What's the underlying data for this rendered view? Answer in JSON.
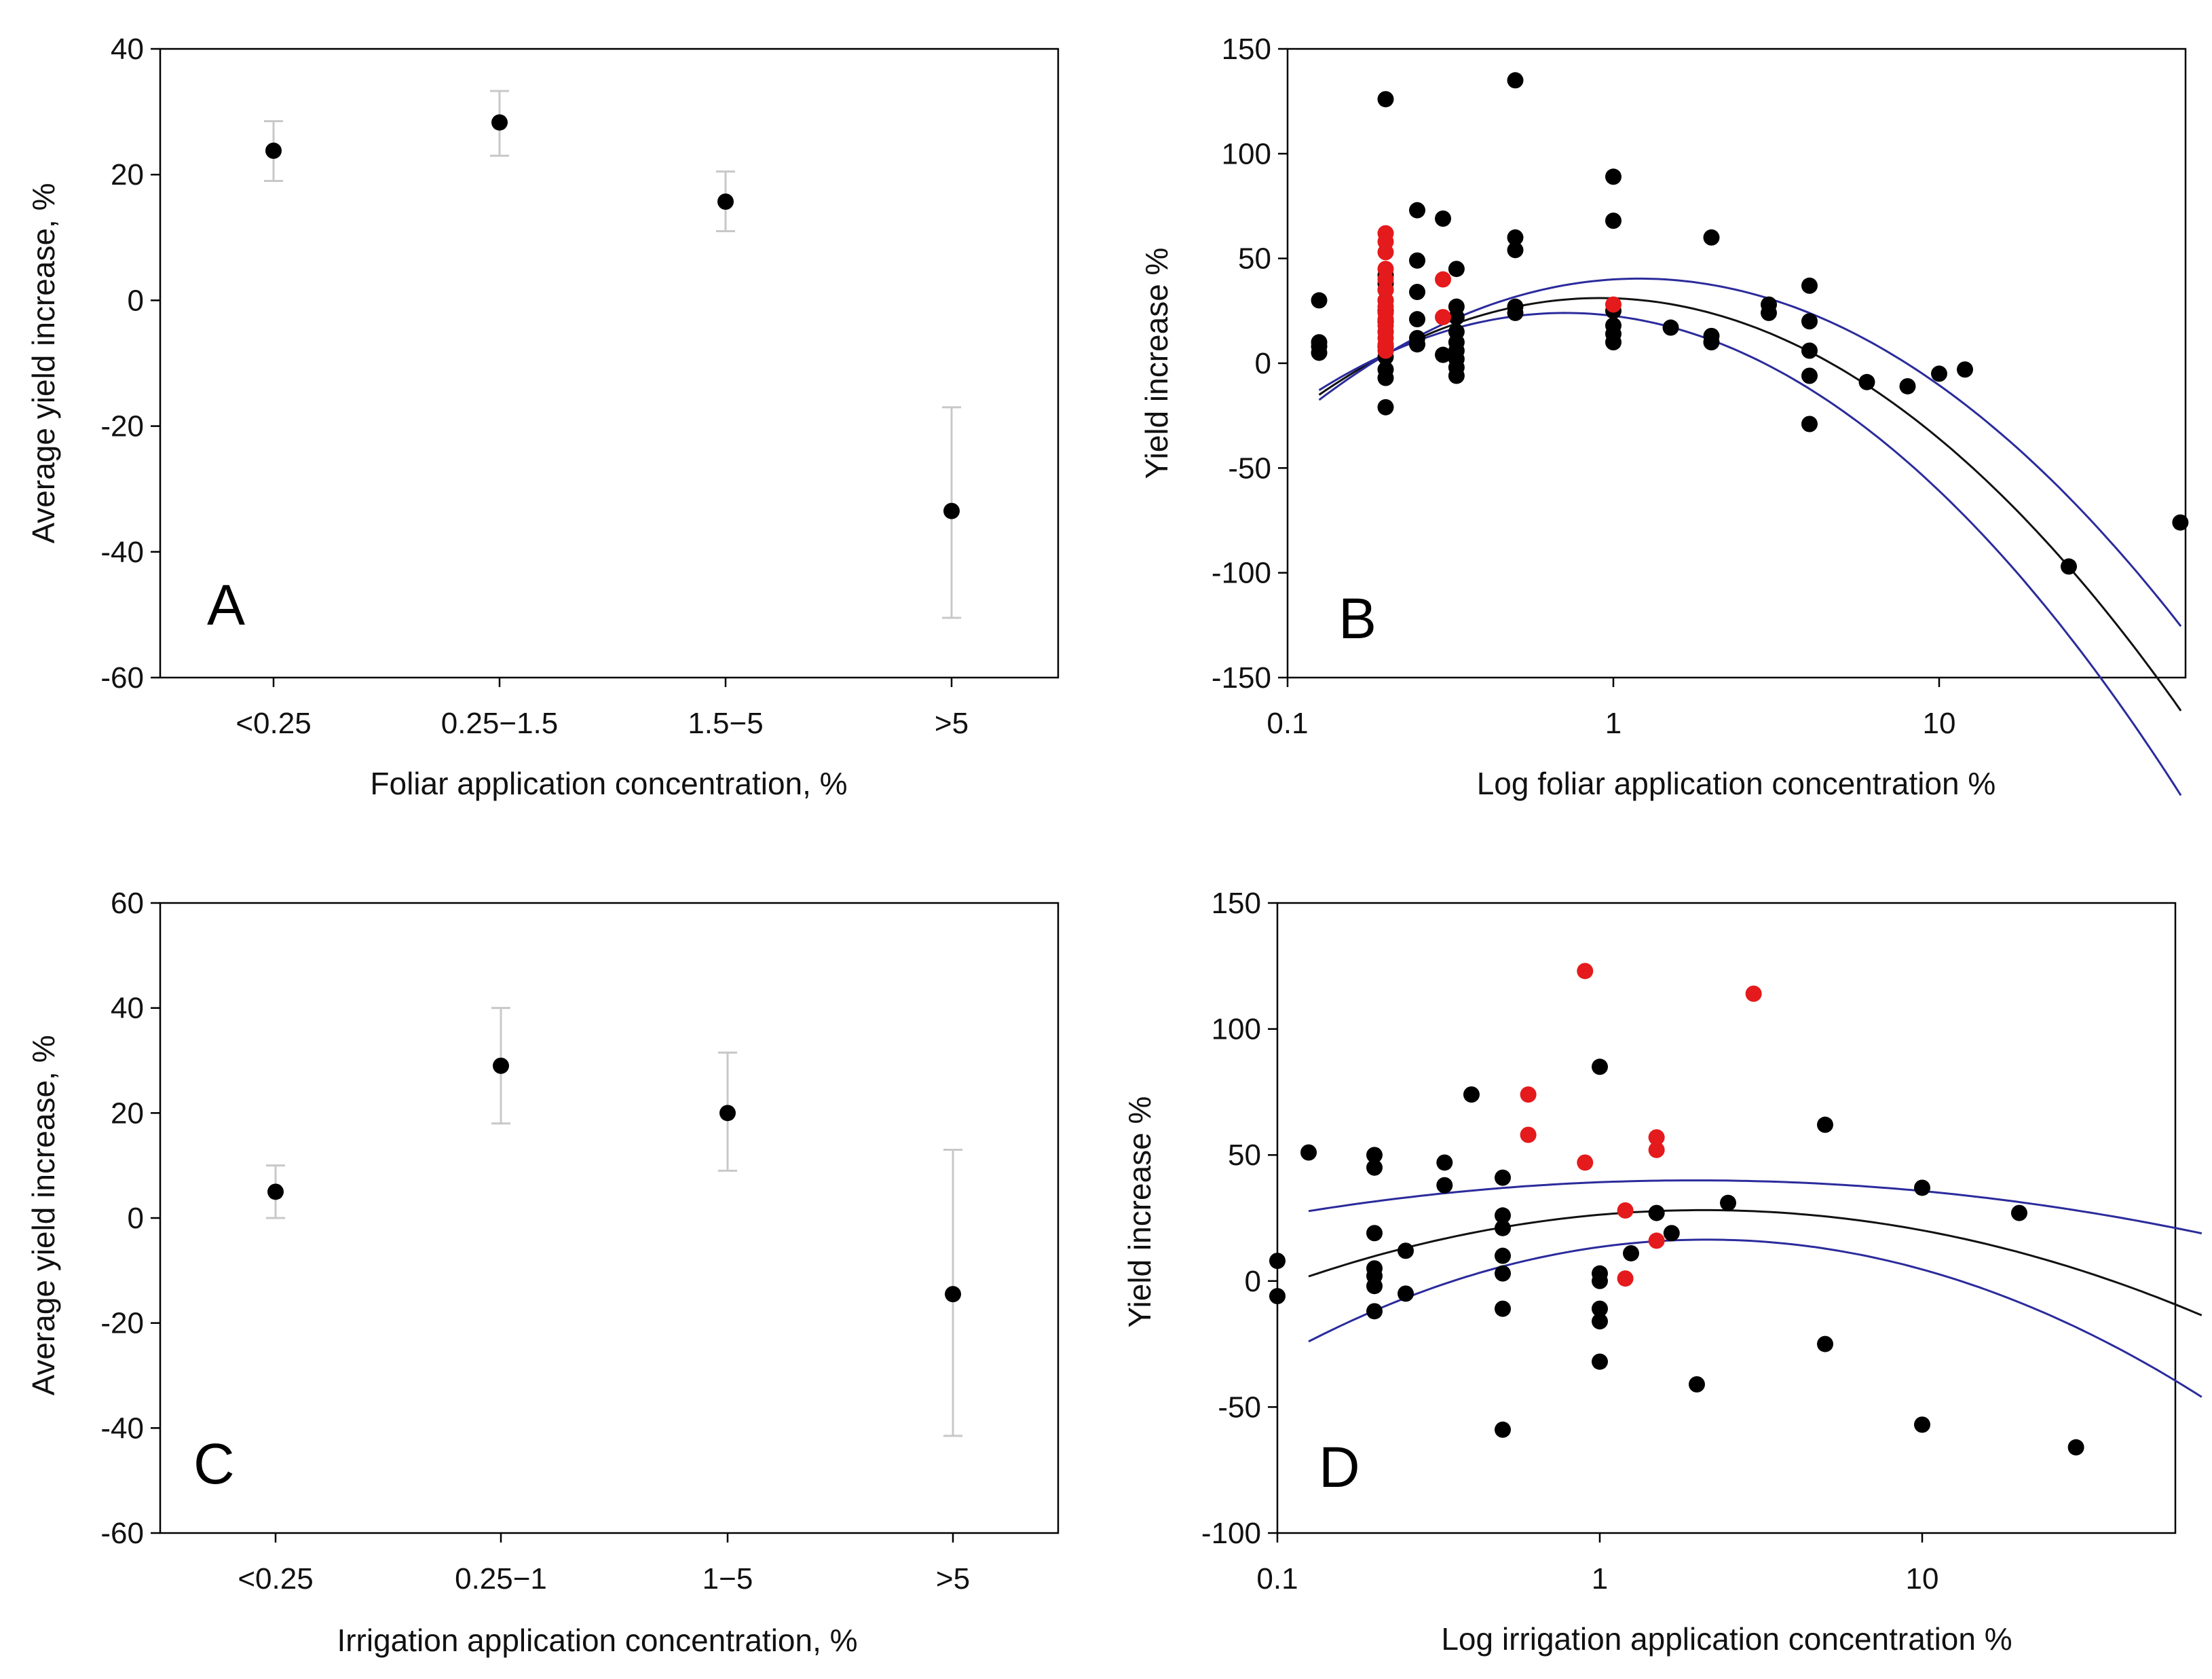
{
  "chart_data": [
    {
      "panel": "A",
      "type": "scatter",
      "subtype": "mean-with-error-bars",
      "xlabel": "Foliar application concentration, %",
      "ylabel": "Average yield increase, %",
      "ylim": [
        -60,
        40
      ],
      "yticks": [
        -60,
        -40,
        -20,
        0,
        20,
        40
      ],
      "categories": [
        "<0.25",
        "0.25−1.5",
        "1.5−5",
        ">5"
      ],
      "values": [
        23.8,
        28.3,
        15.7,
        -33.5
      ],
      "err_low": [
        19,
        23,
        11,
        -50.5
      ],
      "err_high": [
        28.5,
        33.3,
        20.5,
        -17
      ],
      "colors": {
        "point": "#000000",
        "errorbar": "#c8c8c8"
      }
    },
    {
      "panel": "B",
      "type": "scatter",
      "xscale": "log",
      "xlabel": "Log foliar application concentration %",
      "ylabel": "Yield increase %",
      "xlim": [
        0.1,
        60
      ],
      "xticks": [
        0.1,
        1,
        10
      ],
      "xtick_labels": [
        "0.1",
        "1",
        "10"
      ],
      "ylim": [
        -150,
        150
      ],
      "yticks": [
        -150,
        -100,
        -50,
        0,
        50,
        100,
        150
      ],
      "series": [
        {
          "name": "black points",
          "color": "#000000",
          "points": [
            [
              0.125,
              30
            ],
            [
              0.125,
              10
            ],
            [
              0.125,
              8
            ],
            [
              0.125,
              5
            ],
            [
              0.2,
              126
            ],
            [
              0.2,
              42
            ],
            [
              0.2,
              38
            ],
            [
              0.2,
              35
            ],
            [
              0.2,
              30
            ],
            [
              0.2,
              25
            ],
            [
              0.2,
              20
            ],
            [
              0.2,
              15
            ],
            [
              0.2,
              8
            ],
            [
              0.2,
              3
            ],
            [
              0.2,
              -3
            ],
            [
              0.2,
              -7
            ],
            [
              0.2,
              -21
            ],
            [
              0.25,
              73
            ],
            [
              0.25,
              49
            ],
            [
              0.25,
              34
            ],
            [
              0.25,
              21
            ],
            [
              0.25,
              12
            ],
            [
              0.25,
              9
            ],
            [
              0.3,
              69
            ],
            [
              0.3,
              4
            ],
            [
              0.33,
              45
            ],
            [
              0.33,
              27
            ],
            [
              0.33,
              22
            ],
            [
              0.33,
              15
            ],
            [
              0.33,
              10
            ],
            [
              0.33,
              6
            ],
            [
              0.33,
              2
            ],
            [
              0.33,
              -2
            ],
            [
              0.33,
              -6
            ],
            [
              0.5,
              135
            ],
            [
              0.5,
              60
            ],
            [
              0.5,
              54
            ],
            [
              0.5,
              27
            ],
            [
              0.5,
              24
            ],
            [
              1,
              89
            ],
            [
              1,
              68
            ],
            [
              1,
              25
            ],
            [
              1,
              18
            ],
            [
              1,
              14
            ],
            [
              1,
              10
            ],
            [
              1.5,
              17
            ],
            [
              2,
              60
            ],
            [
              2,
              13
            ],
            [
              2,
              10
            ],
            [
              3,
              28
            ],
            [
              3,
              24
            ],
            [
              4,
              37
            ],
            [
              4,
              20
            ],
            [
              4,
              6
            ],
            [
              4,
              -6
            ],
            [
              4,
              -29
            ],
            [
              6,
              -9
            ],
            [
              8,
              -11
            ],
            [
              10,
              -5
            ],
            [
              12,
              -3
            ],
            [
              25,
              -97
            ],
            [
              55,
              -76
            ]
          ]
        },
        {
          "name": "red points",
          "color": "#e41a1c",
          "points": [
            [
              0.2,
              62
            ],
            [
              0.2,
              58
            ],
            [
              0.2,
              53
            ],
            [
              0.2,
              45
            ],
            [
              0.2,
              40
            ],
            [
              0.2,
              35
            ],
            [
              0.2,
              30
            ],
            [
              0.2,
              27
            ],
            [
              0.2,
              24
            ],
            [
              0.2,
              21
            ],
            [
              0.2,
              18
            ],
            [
              0.2,
              15
            ],
            [
              0.2,
              12
            ],
            [
              0.2,
              9
            ],
            [
              0.2,
              6
            ],
            [
              0.3,
              40
            ],
            [
              0.3,
              22
            ],
            [
              1,
              28
            ]
          ]
        }
      ],
      "curves": [
        {
          "name": "fit",
          "color": "#111111",
          "a": 31.0,
          "b": -5.0,
          "c": -62.0
        },
        {
          "name": "upper 95% CI",
          "color": "#2b2b9c",
          "a": 40.0,
          "b": 9.5,
          "c": -60.0
        },
        {
          "name": "lower 95% CI",
          "color": "#2b2b9c",
          "a": 22.6,
          "b": -19.0,
          "c": -64.5
        }
      ]
    },
    {
      "panel": "C",
      "type": "scatter",
      "subtype": "mean-with-error-bars",
      "xlabel": "Irrigation application concentration, %",
      "ylabel": "Average yield increase, %",
      "ylim": [
        -60,
        60
      ],
      "yticks": [
        -60,
        -40,
        -20,
        0,
        20,
        40,
        60
      ],
      "categories": [
        "<0.25",
        "0.25−1",
        "1−5",
        ">5"
      ],
      "values": [
        5,
        29,
        20,
        -14.5
      ],
      "err_low": [
        0,
        18,
        9,
        -41.5
      ],
      "err_high": [
        10,
        40,
        31.5,
        13
      ],
      "colors": {
        "point": "#000000",
        "errorbar": "#c8c8c8"
      }
    },
    {
      "panel": "D",
      "type": "scatter",
      "xscale": "log",
      "xlabel": "Log irrigation application concentration %",
      "ylabel": "Yield increase %",
      "xlim": [
        0.1,
        80
      ],
      "xticks": [
        0.1,
        1,
        10
      ],
      "xtick_labels": [
        "0.1",
        "1",
        "10"
      ],
      "ylim": [
        -100,
        150
      ],
      "yticks": [
        -100,
        -50,
        0,
        50,
        100,
        150
      ],
      "series": [
        {
          "name": "black points",
          "color": "#000000",
          "points": [
            [
              0.1,
              8
            ],
            [
              0.1,
              -6
            ],
            [
              0.125,
              51
            ],
            [
              0.2,
              50
            ],
            [
              0.2,
              45
            ],
            [
              0.2,
              19
            ],
            [
              0.2,
              5
            ],
            [
              0.2,
              2
            ],
            [
              0.2,
              -2
            ],
            [
              0.2,
              -12
            ],
            [
              0.25,
              12
            ],
            [
              0.25,
              -5
            ],
            [
              0.33,
              47
            ],
            [
              0.33,
              38
            ],
            [
              0.4,
              74
            ],
            [
              0.5,
              41
            ],
            [
              0.5,
              26
            ],
            [
              0.5,
              21
            ],
            [
              0.5,
              10
            ],
            [
              0.5,
              3
            ],
            [
              0.5,
              -11
            ],
            [
              0.5,
              -59
            ],
            [
              1,
              85
            ],
            [
              1,
              3
            ],
            [
              1,
              0
            ],
            [
              1,
              -11
            ],
            [
              1,
              -16
            ],
            [
              1,
              -32
            ],
            [
              1.25,
              11
            ],
            [
              1.5,
              27
            ],
            [
              1.67,
              19
            ],
            [
              2,
              -41
            ],
            [
              2.5,
              31
            ],
            [
              5,
              62
            ],
            [
              5,
              -25
            ],
            [
              10,
              37
            ],
            [
              10,
              -57
            ],
            [
              20,
              27
            ],
            [
              30,
              -66
            ]
          ]
        },
        {
          "name": "red points",
          "color": "#e41a1c",
          "points": [
            [
              0.6,
              74
            ],
            [
              0.6,
              58
            ],
            [
              0.9,
              123
            ],
            [
              0.9,
              47
            ],
            [
              1.2,
              28
            ],
            [
              1.2,
              1
            ],
            [
              1.5,
              57
            ],
            [
              1.5,
              52
            ],
            [
              1.5,
              16
            ],
            [
              3,
              114
            ]
          ]
        }
      ],
      "curves": [
        {
          "name": "fit",
          "color": "#111111",
          "a": 26.3,
          "b": 11.3,
          "c": -17.5
        },
        {
          "name": "upper 95% CI",
          "color": "#2b2b9c",
          "a": 39.2,
          "b": 5.0,
          "c": -8.5
        },
        {
          "name": "lower 95% CI",
          "color": "#2b2b9c",
          "a": 13.5,
          "b": 17.6,
          "c": -26.5
        }
      ]
    }
  ]
}
